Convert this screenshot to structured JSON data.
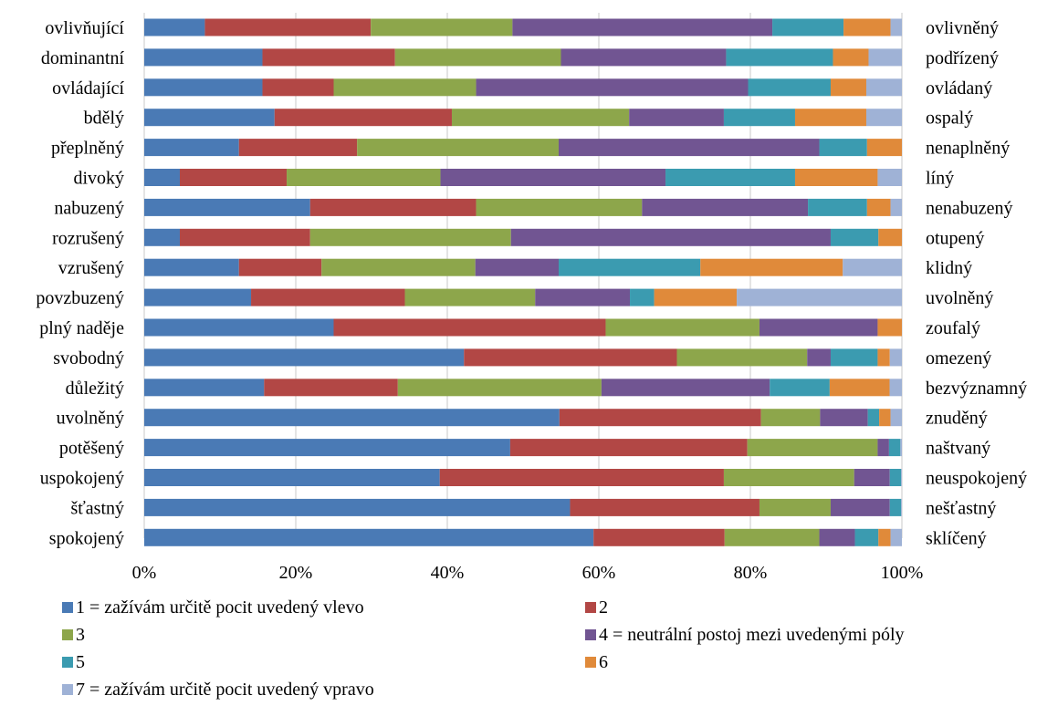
{
  "chart_data": {
    "type": "bar",
    "orientation": "horizontal",
    "stacked": "percent",
    "categories_left": [
      "ovlivňující",
      "dominantní",
      "ovládající",
      "bdělý",
      "přeplněný",
      "divoký",
      "nabuzený",
      "rozrušený",
      "vzrušený",
      "povzbuzený",
      "plný naděje",
      "svobodný",
      "důležitý",
      "uvolněný",
      "potěšený",
      "uspokojený",
      "šťastný",
      "spokojený"
    ],
    "categories_right": [
      "ovlivněný",
      "podřízený",
      "ovládaný",
      "ospalý",
      "nenaplněný",
      "líný",
      "nenabuzený",
      "otupený",
      "klidný",
      "uvolněný",
      "zoufalý",
      "omezený",
      "bezvýznamný",
      "znuděný",
      "naštvaný",
      "neuspokojený",
      "nešťastný",
      "sklíčený"
    ],
    "series": [
      {
        "name": "1 = zažívám určitě pocit uvedený vlevo",
        "color": "#4a7ab5",
        "values": [
          8,
          15.6,
          15.6,
          17.2,
          12.5,
          4.7,
          21.9,
          4.7,
          12.5,
          14.1,
          25,
          42.2,
          15.6,
          54.8,
          48.3,
          39,
          56.2,
          59.3
        ]
      },
      {
        "name": "2",
        "color": "#b24745",
        "values": [
          21.9,
          17.5,
          9.4,
          23.4,
          15.6,
          14.1,
          21.9,
          17.2,
          10.9,
          20.3,
          35.9,
          28.1,
          17.4,
          26.6,
          31.3,
          37.5,
          25,
          17.3
        ]
      },
      {
        "name": "3",
        "color": "#8da64b",
        "values": [
          18.7,
          21.9,
          18.8,
          23.4,
          26.6,
          20.3,
          21.9,
          26.5,
          20.3,
          17.2,
          20.3,
          17.2,
          26.5,
          7.8,
          17.2,
          17.2,
          9.4,
          12.5
        ]
      },
      {
        "name": "4 = neutrální postoj mezi uvedenými póly",
        "color": "#715592",
        "values": [
          34.3,
          21.8,
          35.9,
          12.5,
          34.4,
          29.7,
          21.9,
          42.2,
          11.0,
          12.5,
          15.6,
          3.1,
          21.9,
          6.3,
          1.5,
          4.7,
          7.8,
          4.7
        ]
      },
      {
        "name": "5",
        "color": "#3b9bb0",
        "values": [
          9.4,
          14.1,
          10.9,
          9.4,
          6.3,
          17.1,
          7.8,
          6.3,
          18.7,
          3.2,
          0,
          6.2,
          7.8,
          1.5,
          1.5,
          1.5,
          1.5,
          3.1
        ]
      },
      {
        "name": "6",
        "color": "#e08a3a",
        "values": [
          6.2,
          4.7,
          4.7,
          9.4,
          4.6,
          10.9,
          3.1,
          3.1,
          18.8,
          10.9,
          3.2,
          1.6,
          7.8,
          1.5,
          0,
          0,
          0,
          1.6
        ]
      },
      {
        "name": "7 = zažívám určitě pocit uvedený vpravo",
        "color": "#9fb2d6",
        "values": [
          1.5,
          4.4,
          4.7,
          4.7,
          0,
          3.2,
          1.5,
          0,
          7.8,
          21.8,
          0,
          1.6,
          1.6,
          1.5,
          0.2,
          0.1,
          0.1,
          1.5
        ]
      }
    ],
    "xticks": [
      "0%",
      "20%",
      "40%",
      "60%",
      "80%",
      "100%"
    ],
    "xlim": [
      0,
      100
    ],
    "grid": "vertical",
    "legend_position": "bottom"
  }
}
